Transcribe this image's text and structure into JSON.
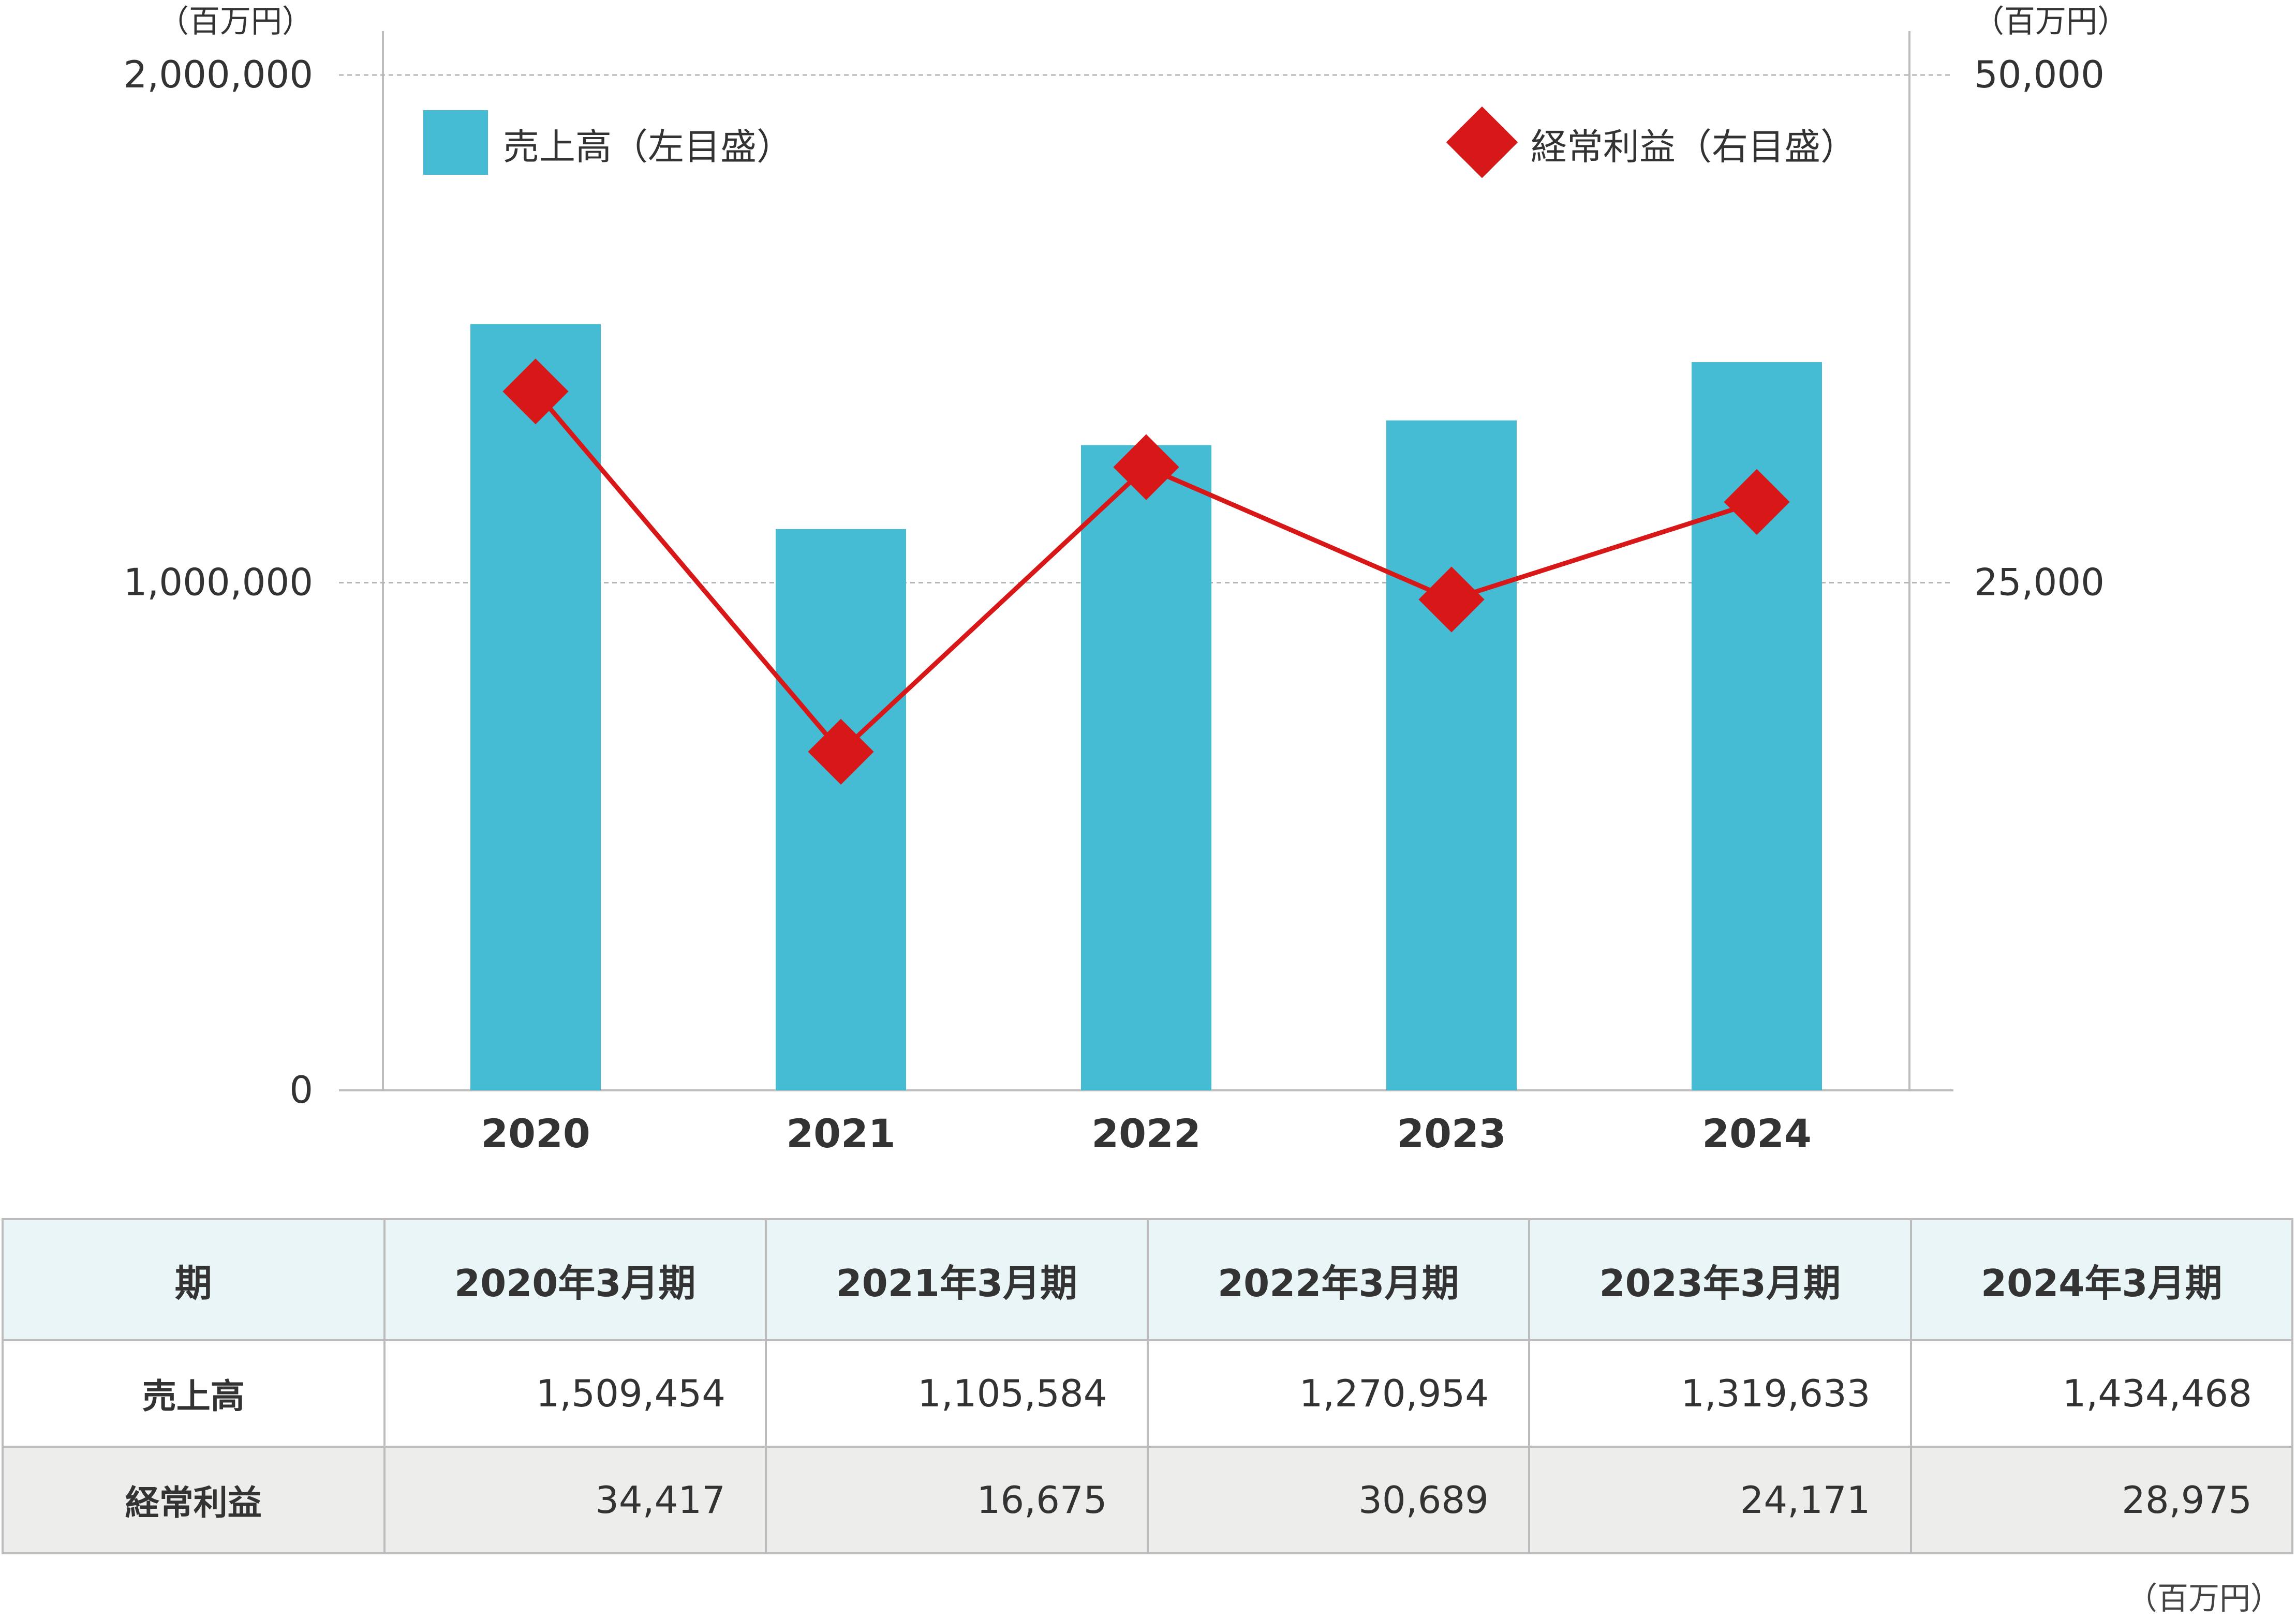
{
  "chart_data": {
    "type": "bar",
    "categories": [
      "2020",
      "2021",
      "2022",
      "2023",
      "2024"
    ],
    "series": [
      {
        "name": "売上高（左目盛）",
        "type": "bar",
        "axis": "left",
        "values": [
          1509454,
          1105584,
          1270954,
          1319633,
          1434468
        ],
        "color": "#45bcd3"
      },
      {
        "name": "経常利益（右目盛）",
        "type": "line",
        "axis": "right",
        "marker": "diamond",
        "values": [
          34417,
          16675,
          30689,
          24171,
          28975
        ],
        "color": "#d81818"
      }
    ],
    "left_axis": {
      "unit": "（百万円）",
      "ylim": [
        0,
        2000000
      ],
      "ticks": [
        "0",
        "1,000,000",
        "2,000,000"
      ]
    },
    "right_axis": {
      "unit": "（百万円）",
      "ylim": [
        0,
        50000
      ],
      "ticks": [
        "25,000",
        "50,000"
      ]
    },
    "grid": "dashed",
    "legend_position": "top"
  },
  "table": {
    "header_label": "期",
    "periods": [
      "2020年3月期",
      "2021年3月期",
      "2022年3月期",
      "2023年3月期",
      "2024年3月期"
    ],
    "rows": [
      {
        "label": "売上高",
        "values": [
          "1,509,454",
          "1,105,584",
          "1,270,954",
          "1,319,633",
          "1,434,468"
        ]
      },
      {
        "label": "経常利益",
        "values": [
          "34,417",
          "16,675",
          "30,689",
          "24,171",
          "28,975"
        ]
      }
    ],
    "unit_note": "（百万円）"
  }
}
